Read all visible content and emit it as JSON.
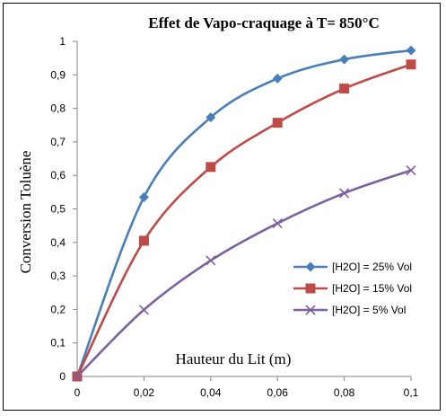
{
  "chart_data": {
    "type": "line",
    "title": "Effet  de Vapo-craquage à T= 850°C",
    "xlabel": "Hauteur du Lit   (m)",
    "ylabel": "Conversion Toluène",
    "xlim": [
      0,
      0.1
    ],
    "ylim": [
      0,
      1
    ],
    "x_ticks": [
      "0",
      "0,02",
      "0,04",
      "0,06",
      "0,08",
      "0,1"
    ],
    "y_ticks": [
      "0",
      "0,1",
      "0,2",
      "0,3",
      "0,4",
      "0,5",
      "0,6",
      "0,7",
      "0,8",
      "0,9",
      "1"
    ],
    "x": [
      0,
      0.02,
      0.04,
      0.06,
      0.08,
      0.1
    ],
    "grid": false,
    "legend_position": "right",
    "series": [
      {
        "name": "[H2O] = 25% Vol",
        "color": "#4A7EBB",
        "marker": "diamond",
        "values": [
          0,
          0.535,
          0.773,
          0.889,
          0.946,
          0.973
        ]
      },
      {
        "name": "[H2O] = 15% Vol",
        "color": "#BE4B48",
        "marker": "square",
        "values": [
          0,
          0.405,
          0.625,
          0.757,
          0.859,
          0.931
        ]
      },
      {
        "name": "[H2O] = 5% Vol",
        "color": "#7D60A0",
        "marker": "x",
        "values": [
          0,
          0.199,
          0.346,
          0.457,
          0.547,
          0.615
        ]
      }
    ]
  }
}
